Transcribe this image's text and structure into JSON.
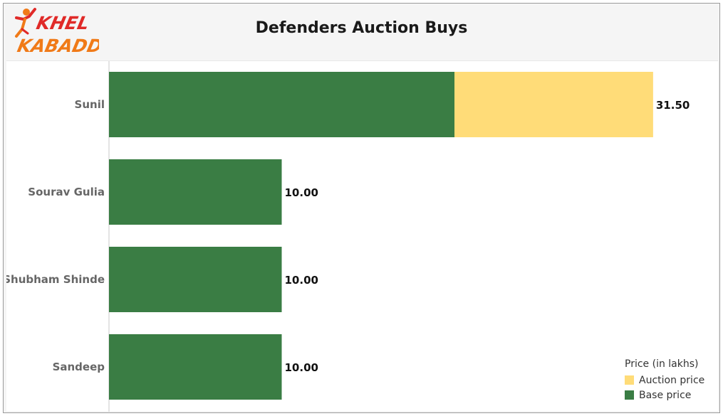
{
  "chart_data": {
    "type": "bar",
    "orientation": "horizontal",
    "stacked": true,
    "title": "Defenders Auction Buys",
    "categories": [
      "Sunil",
      "Sourav Gulia",
      "Shubham Shinde",
      "Sandeep"
    ],
    "series": [
      {
        "name": "Base price",
        "values": [
          20.0,
          10.0,
          10.0,
          10.0
        ],
        "color": "#3a7d44"
      },
      {
        "name": "Auction price",
        "values": [
          11.5,
          0,
          0,
          0
        ],
        "color": "#ffdc78"
      }
    ],
    "totals_labels": [
      "31.50",
      "10.00",
      "10.00",
      "10.00"
    ],
    "xlim": [
      0,
      40
    ],
    "grid": false,
    "legend": {
      "title": "Price (in lakhs)",
      "placement": "bottom-right",
      "entries": [
        {
          "label": "Auction price",
          "color": "#ffdc78"
        },
        {
          "label": "Base price",
          "color": "#3a7d44"
        }
      ]
    }
  },
  "logo": {
    "text_line1": "KHEL",
    "text_line2": "KABADDI",
    "color_red": "#e02a28",
    "color_orange": "#f07a18"
  }
}
